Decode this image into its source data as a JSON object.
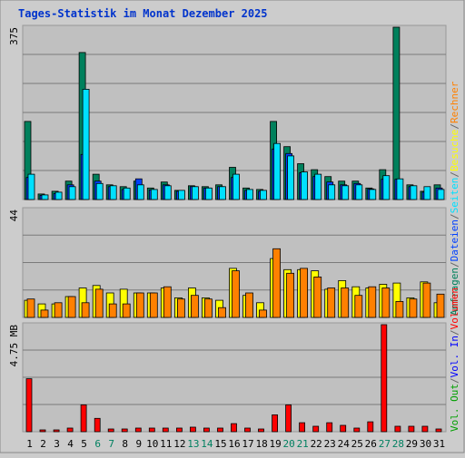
{
  "title": "Tages-Statistik im Monat Dezember 2025",
  "colors": {
    "background": "#cccccc",
    "panel": "#c0c0c0",
    "grid": "#7a7a7a",
    "title": "#0033cc",
    "anfragen": "#00805c",
    "dateien": "#0040ff",
    "seiten": "#00e0ff",
    "besuche": "#ffff00",
    "rechner": "#ff8000",
    "volumen": "#ff0000",
    "vol_in": "#0000ff",
    "vol_out": "#00a000",
    "axis_text": "#000000",
    "weekend_label": "#008060",
    "separator": "#666666"
  },
  "chart_data": [
    {
      "type": "bar",
      "panel": "requests",
      "ytick_label": "375",
      "ylim": [
        0,
        375
      ],
      "grid": true,
      "categories": [
        "1",
        "2",
        "3",
        "4",
        "5",
        "6",
        "7",
        "8",
        "9",
        "10",
        "11",
        "12",
        "13",
        "14",
        "15",
        "16",
        "17",
        "18",
        "19",
        "20",
        "21",
        "22",
        "23",
        "24",
        "25",
        "26",
        "27",
        "28",
        "29",
        "30",
        "31"
      ],
      "series": [
        {
          "name": "Anfragen",
          "values": [
            170,
            12,
            18,
            40,
            320,
            55,
            32,
            28,
            40,
            25,
            38,
            20,
            30,
            28,
            32,
            70,
            25,
            22,
            170,
            115,
            78,
            65,
            50,
            40,
            40,
            25,
            65,
            375,
            32,
            18,
            32
          ]
        },
        {
          "name": "Dateien",
          "values": [
            48,
            9,
            13,
            32,
            98,
            40,
            28,
            22,
            45,
            21,
            32,
            18,
            28,
            25,
            28,
            48,
            20,
            18,
            110,
            100,
            58,
            50,
            38,
            32,
            35,
            23,
            44,
            44,
            28,
            16,
            25
          ]
        },
        {
          "name": "Seiten",
          "values": [
            55,
            10,
            16,
            28,
            240,
            35,
            30,
            25,
            32,
            22,
            30,
            20,
            28,
            25,
            28,
            55,
            22,
            20,
            122,
            95,
            60,
            55,
            32,
            30,
            32,
            22,
            52,
            45,
            30,
            28,
            22
          ]
        }
      ]
    },
    {
      "type": "bar",
      "panel": "visits",
      "ytick_label": "44",
      "ylim": [
        0,
        44
      ],
      "grid": true,
      "categories": [
        "1",
        "2",
        "3",
        "4",
        "5",
        "6",
        "7",
        "8",
        "9",
        "10",
        "11",
        "12",
        "13",
        "14",
        "15",
        "16",
        "17",
        "18",
        "19",
        "20",
        "21",
        "22",
        "23",
        "24",
        "25",
        "26",
        "27",
        "28",
        "29",
        "30",
        "31"
      ],
      "series": [
        {
          "name": "Besuche",
          "values": [
            7,
            5.5,
            5.5,
            8.5,
            12,
            13,
            10,
            11.5,
            10,
            10,
            12,
            8,
            12,
            8,
            7,
            20,
            9,
            6,
            24,
            19.5,
            19.5,
            19,
            11.5,
            15,
            12.5,
            12,
            13.5,
            14,
            8,
            14.5,
            6
          ]
        },
        {
          "name": "Rechner",
          "values": [
            7.5,
            3,
            6,
            8.5,
            6,
            11.5,
            5.5,
            5.5,
            10,
            10,
            12.5,
            7.5,
            9,
            7.5,
            4,
            19,
            10,
            3,
            28,
            18,
            20,
            16.5,
            12,
            12,
            9,
            12.5,
            12,
            6.5,
            7.5,
            14,
            9.5
          ]
        }
      ]
    },
    {
      "type": "bar",
      "panel": "volume",
      "ytick_label": "4.75 MB",
      "ylim": [
        0,
        4.75
      ],
      "grid": true,
      "categories": [
        "1",
        "2",
        "3",
        "4",
        "5",
        "6",
        "7",
        "8",
        "9",
        "10",
        "11",
        "12",
        "13",
        "14",
        "15",
        "16",
        "17",
        "18",
        "19",
        "20",
        "21",
        "22",
        "23",
        "24",
        "25",
        "26",
        "27",
        "28",
        "29",
        "30",
        "31"
      ],
      "series": [
        {
          "name": "Volumen",
          "values": [
            2.35,
            0.08,
            0.08,
            0.16,
            1.19,
            0.59,
            0.12,
            0.12,
            0.16,
            0.16,
            0.16,
            0.16,
            0.2,
            0.16,
            0.16,
            0.36,
            0.16,
            0.12,
            0.75,
            1.19,
            0.4,
            0.24,
            0.4,
            0.28,
            0.16,
            0.44,
            4.75,
            0.24,
            0.24,
            0.24,
            0.12
          ]
        }
      ]
    }
  ],
  "side_legend": {
    "top": [
      {
        "text": "Anfragen",
        "color_key": "anfragen"
      },
      {
        "text": "/",
        "color_key": "separator"
      },
      {
        "text": "Dateien",
        "color_key": "dateien"
      },
      {
        "text": "/",
        "color_key": "separator"
      },
      {
        "text": "Seiten",
        "color_key": "seiten"
      },
      {
        "text": "/",
        "color_key": "separator"
      },
      {
        "text": "Besuche",
        "color_key": "besuche"
      },
      {
        "text": "/",
        "color_key": "separator"
      },
      {
        "text": "Rechner",
        "color_key": "rechner"
      }
    ],
    "bottom": [
      {
        "text": "Vol. Out",
        "color_key": "vol_out"
      },
      {
        "text": "/",
        "color_key": "separator"
      },
      {
        "text": "Vol. In",
        "color_key": "vol_in"
      },
      {
        "text": "/",
        "color_key": "separator"
      },
      {
        "text": "Volumen",
        "color_key": "volumen"
      }
    ]
  },
  "weekend_days": [
    6,
    7,
    13,
    14,
    20,
    21,
    27,
    28
  ]
}
